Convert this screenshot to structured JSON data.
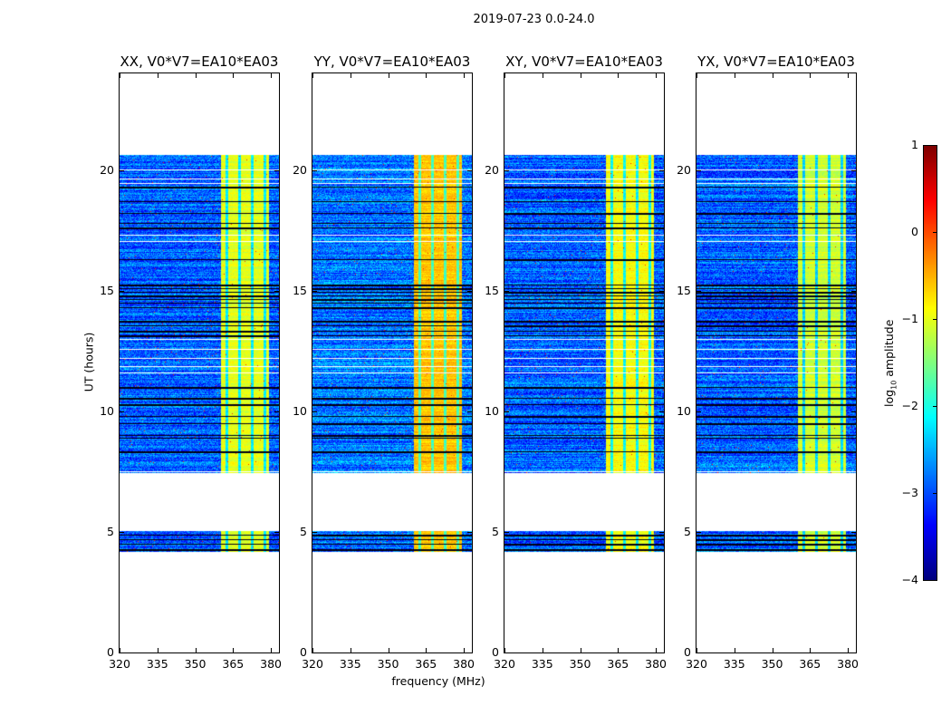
{
  "chart_data": {
    "type": "heatmap",
    "title": "2019-07-23 0.0-24.0",
    "xlabel": "frequency (MHz)",
    "ylabel": "UT (hours)",
    "xlim": [
      320,
      383.2
    ],
    "ylim": [
      0,
      24
    ],
    "xticks": [
      "320",
      "335",
      "350",
      "365",
      "380"
    ],
    "xtick_values": [
      320,
      335,
      350,
      365,
      380
    ],
    "yticks": [
      "0",
      "5",
      "10",
      "15",
      "20"
    ],
    "ytick_values": [
      0,
      5,
      10,
      15,
      20
    ],
    "panels": [
      {
        "title": "XX, V0*V7=EA10*EA03",
        "band_level": -1.0,
        "bg_level": -2.9
      },
      {
        "title": "YY, V0*V7=EA10*EA03",
        "band_level": -0.6,
        "bg_level": -2.8
      },
      {
        "title": "XY, V0*V7=EA10*EA03",
        "band_level": -0.9,
        "bg_level": -2.9
      },
      {
        "title": "YX, V0*V7=EA10*EA03",
        "band_level": -1.1,
        "bg_level": -2.9
      }
    ],
    "data_time_ranges": [
      [
        4.2,
        5.05
      ],
      [
        7.45,
        20.65
      ]
    ],
    "bright_band_mhz": [
      360,
      379
    ],
    "band_dividers_mhz": [
      362.5,
      367.5,
      372.5,
      377.5
    ],
    "flagged_rows_hours": [
      7.5,
      11.6,
      11.85,
      12.2,
      12.6,
      13.0,
      17.05,
      17.3,
      19.45,
      19.65,
      20.0
    ],
    "dark_rows_hours": [
      4.3,
      4.5,
      4.7,
      4.9,
      8.35,
      8.9,
      9.0,
      9.5,
      9.8,
      10.3,
      10.55,
      11.0,
      13.15,
      13.35,
      13.55,
      13.75,
      14.3,
      14.5,
      14.65,
      14.8,
      14.95,
      15.1,
      15.25,
      16.3,
      17.6,
      17.8,
      18.2,
      18.7,
      19.3
    ],
    "colorbar": {
      "range": [
        -4,
        1
      ],
      "ticks": [
        "−4",
        "−3",
        "−2",
        "−1",
        "0",
        "1"
      ],
      "tick_values": [
        -4,
        -3,
        -2,
        -1,
        0,
        1
      ],
      "label_prefix": "log",
      "label_sub": "10",
      "label_suffix": " amplitude",
      "colormap": "jet"
    }
  }
}
